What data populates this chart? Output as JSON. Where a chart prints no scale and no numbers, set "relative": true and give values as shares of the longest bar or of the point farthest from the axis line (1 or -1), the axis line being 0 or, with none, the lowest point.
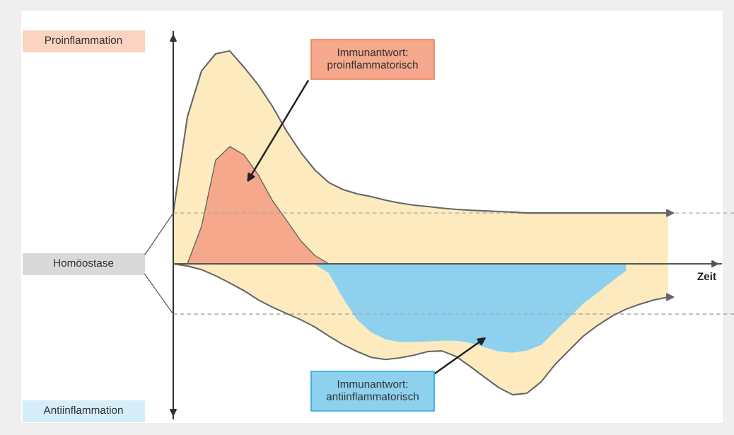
{
  "chart_data": {
    "type": "area",
    "relative": true,
    "xlabel": "Zeit",
    "categories": [
      null,
      null,
      null,
      null,
      null,
      null,
      null,
      null,
      null,
      null,
      null,
      null,
      null,
      null,
      null,
      null,
      null,
      null,
      null,
      null,
      null,
      null,
      null,
      null,
      null,
      null,
      null,
      null,
      null,
      null,
      null,
      null,
      null,
      null,
      null,
      null
    ],
    "series": [
      {
        "color": "#fdebbf",
        "values": [
          0.239,
          0.691,
          0.907,
          0.987,
          1.0,
          0.924,
          0.841,
          0.741,
          0.625,
          0.525,
          0.442,
          0.382,
          0.349,
          0.329,
          0.316,
          0.299,
          0.286,
          0.276,
          0.269,
          0.262,
          0.256,
          0.252,
          0.249,
          0.246,
          0.243,
          0.239,
          0.239,
          0.239,
          0.239,
          0.239,
          0.239,
          0.239,
          0.239,
          0.239,
          0.239,
          0.239
        ]
      },
      {
        "color": "#fdebbf",
        "values": [
          0,
          -0.01,
          -0.027,
          -0.056,
          -0.09,
          -0.126,
          -0.169,
          -0.203,
          -0.233,
          -0.262,
          -0.296,
          -0.339,
          -0.379,
          -0.412,
          -0.439,
          -0.449,
          -0.442,
          -0.429,
          -0.412,
          -0.409,
          -0.435,
          -0.482,
          -0.532,
          -0.581,
          -0.615,
          -0.608,
          -0.555,
          -0.472,
          -0.405,
          -0.339,
          -0.289,
          -0.246,
          -0.213,
          -0.189,
          -0.169,
          -0.156
        ]
      },
      {
        "color": "#f5a88b",
        "values": [
          null,
          0,
          0.176,
          0.488,
          0.551,
          0.512,
          0.419,
          0.299,
          0.206,
          0.11,
          0.04,
          0,
          null,
          null,
          null,
          null,
          null,
          null,
          null,
          null,
          null,
          null,
          null,
          null,
          null,
          null,
          null,
          null,
          null,
          null,
          null,
          null,
          null,
          null,
          null,
          null
        ]
      },
      {
        "color": "#8dd1ef",
        "values": [
          null,
          null,
          null,
          null,
          null,
          null,
          null,
          null,
          null,
          null,
          0,
          -0.04,
          -0.156,
          -0.259,
          -0.319,
          -0.352,
          -0.365,
          -0.365,
          -0.362,
          -0.359,
          -0.359,
          -0.369,
          -0.389,
          -0.409,
          -0.415,
          -0.405,
          -0.379,
          -0.312,
          -0.249,
          -0.183,
          -0.133,
          -0.08,
          -0.03,
          null,
          null,
          null
        ]
      }
    ],
    "ref_lines": [
      {
        "axis": "y",
        "value": 0.239,
        "color": "#aaaaaa",
        "line_style": "dashed"
      },
      {
        "axis": "y",
        "value": -0.236,
        "color": "#aaaaaa",
        "line_style": "dashed"
      }
    ],
    "annotations": [
      "Proinflammation",
      "Homöostase",
      "Antiinflammation",
      "Immunantwort:\nproinflammatorisch",
      "Immunantwort:\nantiinflammatorisch"
    ]
  }
}
